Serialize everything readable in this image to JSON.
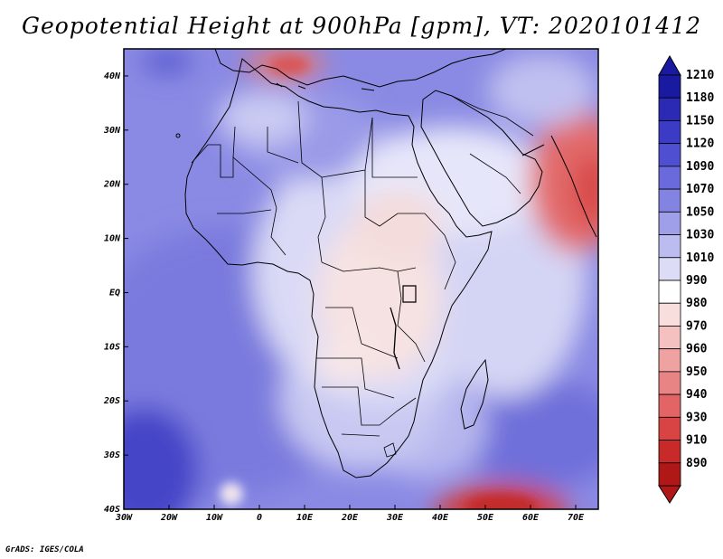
{
  "title": "Geopotential Height at 900hPa [gpm], VT: 2020101412",
  "credit": "GrADS: IGES/COLA",
  "map": {
    "lon_ticks": [
      "30W",
      "20W",
      "10W",
      "0",
      "10E",
      "20E",
      "30E",
      "40E",
      "50E",
      "60E",
      "70E"
    ],
    "lat_ticks": [
      "40N",
      "30N",
      "20N",
      "10N",
      "EQ",
      "10S",
      "20S",
      "30S",
      "40S"
    ],
    "lon_range": [
      -30,
      75
    ],
    "lat_range": [
      -40,
      45
    ]
  },
  "colorbar": {
    "labels": [
      "1210",
      "1180",
      "1150",
      "1120",
      "1090",
      "1070",
      "1050",
      "1030",
      "1010",
      "990",
      "980",
      "970",
      "960",
      "950",
      "940",
      "930",
      "910",
      "890"
    ],
    "colors": [
      "#1a1aa0",
      "#2a2ab4",
      "#3b3bc6",
      "#4f4fd2",
      "#6a6adc",
      "#8383e2",
      "#9e9ee9",
      "#bcbcf0",
      "#dcdcf7",
      "#ffffff",
      "#f9dede",
      "#f4c0c0",
      "#eea2a2",
      "#e88484",
      "#e26464",
      "#d84444",
      "#c82a2a",
      "#b01818"
    ]
  },
  "colors": {
    "background": "#ffffff",
    "field_base": "#8a8ae4",
    "high_anomaly": "#e04a4a"
  }
}
